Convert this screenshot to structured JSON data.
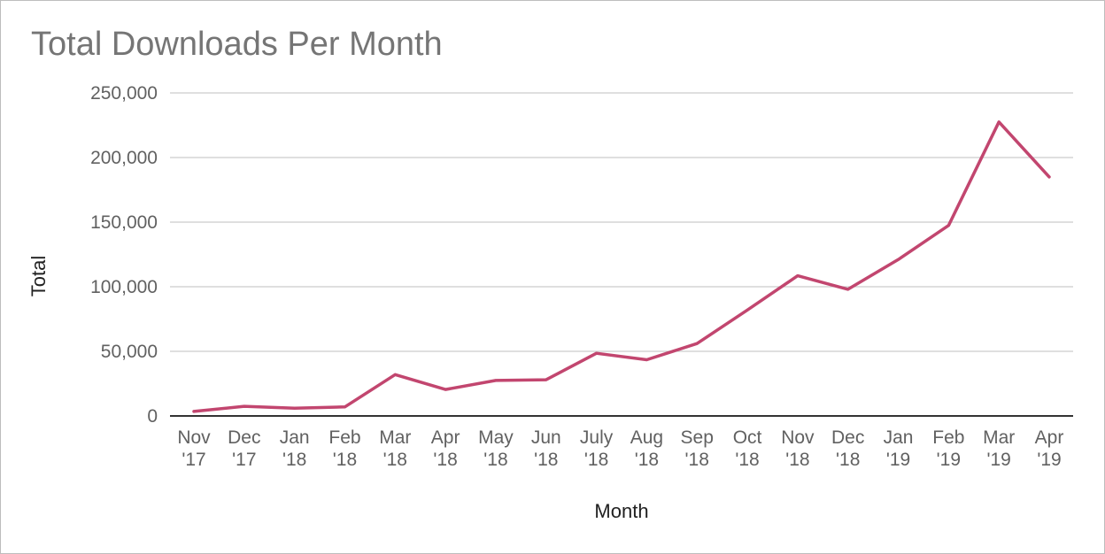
{
  "chart_data": {
    "type": "line",
    "title": "Total Downloads Per Month",
    "xlabel": "Month",
    "ylabel": "Total",
    "ylim": [
      0,
      250000
    ],
    "yticks": [
      0,
      50000,
      100000,
      150000,
      200000,
      250000
    ],
    "ytick_labels": [
      "0",
      "50,000",
      "100,000",
      "150,000",
      "200,000",
      "250,000"
    ],
    "categories": [
      [
        "Nov",
        "'17"
      ],
      [
        "Dec",
        "'17"
      ],
      [
        "Jan",
        "'18"
      ],
      [
        "Feb",
        "'18"
      ],
      [
        "Mar",
        "'18"
      ],
      [
        "Apr",
        "'18"
      ],
      [
        "May",
        "'18"
      ],
      [
        "Jun",
        "'18"
      ],
      [
        "July",
        "'18"
      ],
      [
        "Aug",
        "'18"
      ],
      [
        "Sep",
        "'18"
      ],
      [
        "Oct",
        "'18"
      ],
      [
        "Nov",
        "'18"
      ],
      [
        "Dec",
        "'18"
      ],
      [
        "Jan",
        "'19"
      ],
      [
        "Feb",
        "'19"
      ],
      [
        "Mar",
        "'19"
      ],
      [
        "Apr",
        "'19"
      ]
    ],
    "series": [
      {
        "values": [
          3500,
          7500,
          6000,
          7000,
          32000,
          20500,
          27500,
          28000,
          48500,
          43500,
          56000,
          82000,
          108500,
          98000,
          121000,
          147500,
          227500,
          185000
        ],
        "color": "#c2466f"
      }
    ],
    "grid": true,
    "legend": "none"
  }
}
